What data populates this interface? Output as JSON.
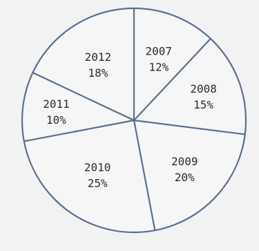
{
  "chart_data": {
    "type": "pie",
    "title": "",
    "categories": [
      "2007",
      "2008",
      "2009",
      "2010",
      "2011",
      "2012"
    ],
    "values": [
      12,
      15,
      20,
      25,
      10,
      18
    ],
    "labels": [
      {
        "year": "2007",
        "pct": "12%"
      },
      {
        "year": "2008",
        "pct": "15%"
      },
      {
        "year": "2009",
        "pct": "20%"
      },
      {
        "year": "2010",
        "pct": "25%"
      },
      {
        "year": "2011",
        "pct": "10%"
      },
      {
        "year": "2012",
        "pct": "18%"
      }
    ],
    "start": "12 o'clock",
    "direction": "clockwise",
    "legend": "none",
    "colors": {
      "slice": "#f6f6f6",
      "line": "#5a6f8c",
      "background": "#f2f2f2",
      "text": "#2c2c2c"
    }
  }
}
